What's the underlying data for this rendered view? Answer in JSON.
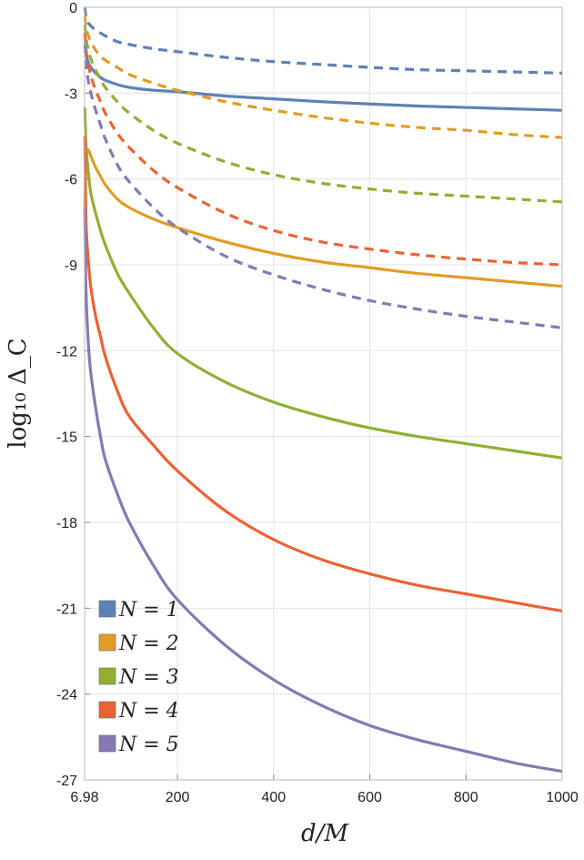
{
  "chart_data": {
    "type": "line",
    "xlabel": "d/M",
    "ylabel": "log₁₀ Δ_C",
    "xlim": [
      6.98,
      1000
    ],
    "ylim": [
      -27,
      0
    ],
    "x_ticks": [
      6.98,
      200,
      400,
      600,
      800,
      1000
    ],
    "x_tick_labels": [
      "6.98",
      "200",
      "400",
      "600",
      "800",
      "1000"
    ],
    "y_ticks": [
      0,
      -3,
      -6,
      -9,
      -12,
      -15,
      -18,
      -21,
      -24,
      -27
    ],
    "y_tick_labels": [
      "0",
      "-3",
      "-6",
      "-9",
      "-12",
      "-15",
      "-18",
      "-21",
      "-24",
      "-27"
    ],
    "grid": true,
    "legend_position": "bottom-left",
    "x": [
      7.5,
      10,
      15,
      20,
      30,
      40,
      50,
      75,
      100,
      150,
      200,
      300,
      400,
      500,
      600,
      700,
      800,
      900,
      1000
    ],
    "series": [
      {
        "name": "N = 1",
        "style": "solid",
        "color": "#5e81b5",
        "values": [
          -0.9,
          -1.6,
          -1.95,
          -2.1,
          -2.3,
          -2.45,
          -2.55,
          -2.7,
          -2.8,
          -2.9,
          -2.95,
          -3.1,
          -3.2,
          -3.3,
          -3.38,
          -3.45,
          -3.5,
          -3.55,
          -3.6
        ]
      },
      {
        "name": "N = 2",
        "style": "solid",
        "color": "#e19c24",
        "values": [
          -7.0,
          -5.2,
          -5.0,
          -5.2,
          -5.6,
          -5.9,
          -6.2,
          -6.7,
          -7.0,
          -7.4,
          -7.7,
          -8.2,
          -8.6,
          -8.9,
          -9.1,
          -9.3,
          -9.45,
          -9.6,
          -9.75
        ]
      },
      {
        "name": "N = 3",
        "style": "solid",
        "color": "#8fb032",
        "values": [
          -3.5,
          -4.8,
          -5.8,
          -6.5,
          -7.2,
          -7.8,
          -8.3,
          -9.3,
          -10.0,
          -11.2,
          -12.1,
          -13.1,
          -13.8,
          -14.3,
          -14.7,
          -15.0,
          -15.25,
          -15.5,
          -15.75
        ]
      },
      {
        "name": "N = 4",
        "style": "solid",
        "color": "#eb6235",
        "values": [
          -4.5,
          -7.5,
          -8.9,
          -9.8,
          -10.8,
          -11.5,
          -12.2,
          -13.4,
          -14.3,
          -15.3,
          -16.2,
          -17.6,
          -18.6,
          -19.3,
          -19.8,
          -20.2,
          -20.5,
          -20.8,
          -21.1
        ]
      },
      {
        "name": "N = 5",
        "style": "solid",
        "color": "#8778b3",
        "values": [
          -7.0,
          -10.0,
          -11.8,
          -12.8,
          -14.0,
          -15.0,
          -15.8,
          -17.0,
          -18.0,
          -19.5,
          -20.7,
          -22.3,
          -23.5,
          -24.4,
          -25.1,
          -25.6,
          -26.0,
          -26.4,
          -26.7
        ]
      },
      {
        "name": "N = 1",
        "style": "dashed",
        "color": "#5e81b5",
        "values": [
          0.0,
          -0.35,
          -0.55,
          -0.65,
          -0.8,
          -0.9,
          -1.0,
          -1.2,
          -1.3,
          -1.45,
          -1.55,
          -1.75,
          -1.9,
          -2.0,
          -2.1,
          -2.18,
          -2.22,
          -2.26,
          -2.3
        ]
      },
      {
        "name": "N = 2",
        "style": "dashed",
        "color": "#e19c24",
        "values": [
          -0.3,
          -0.7,
          -1.0,
          -1.2,
          -1.5,
          -1.7,
          -1.85,
          -2.1,
          -2.35,
          -2.65,
          -2.9,
          -3.3,
          -3.6,
          -3.85,
          -4.05,
          -4.2,
          -4.3,
          -4.45,
          -4.55
        ]
      },
      {
        "name": "N = 3",
        "style": "dashed",
        "color": "#8fb032",
        "values": [
          -0.6,
          -1.1,
          -1.5,
          -1.8,
          -2.2,
          -2.5,
          -2.8,
          -3.3,
          -3.7,
          -4.3,
          -4.75,
          -5.4,
          -5.85,
          -6.15,
          -6.35,
          -6.5,
          -6.6,
          -6.7,
          -6.8
        ]
      },
      {
        "name": "N = 4",
        "style": "dashed",
        "color": "#eb6235",
        "values": [
          -0.9,
          -1.5,
          -2.0,
          -2.4,
          -2.9,
          -3.3,
          -3.7,
          -4.4,
          -4.9,
          -5.7,
          -6.3,
          -7.2,
          -7.8,
          -8.2,
          -8.45,
          -8.65,
          -8.8,
          -8.92,
          -9.0
        ]
      },
      {
        "name": "N = 5",
        "style": "dashed",
        "color": "#8778b3",
        "values": [
          -1.3,
          -2.0,
          -2.6,
          -3.0,
          -3.6,
          -4.1,
          -4.6,
          -5.5,
          -6.1,
          -7.0,
          -7.7,
          -8.7,
          -9.35,
          -9.85,
          -10.25,
          -10.55,
          -10.8,
          -11.0,
          -11.2
        ]
      }
    ],
    "legend": [
      {
        "label": "N = 1",
        "color": "#5e81b5"
      },
      {
        "label": "N = 2",
        "color": "#e19c24"
      },
      {
        "label": "N = 3",
        "color": "#8fb032"
      },
      {
        "label": "N = 4",
        "color": "#eb6235"
      },
      {
        "label": "N = 5",
        "color": "#8778b3"
      }
    ]
  }
}
